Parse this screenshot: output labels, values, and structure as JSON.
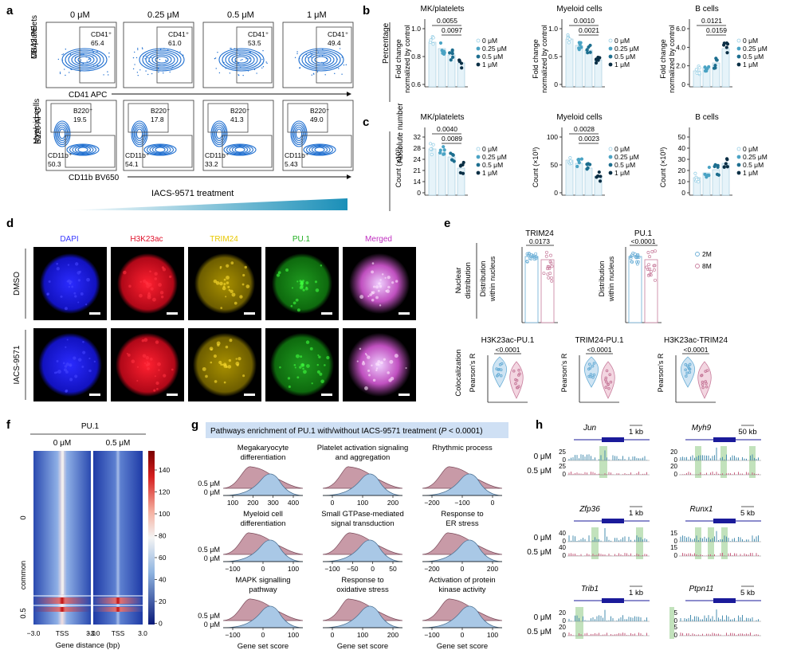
{
  "panels": {
    "a": "a",
    "b": "b",
    "c": "c",
    "d": "d",
    "e": "e",
    "f": "f",
    "g": "g",
    "h": "h"
  },
  "panel_a": {
    "conc": [
      "0 μM",
      "0.25 μM",
      "0.5 μM",
      "1 μM"
    ],
    "row1_label_1": "MK/platelets",
    "row1_label_2": "CD42 PE",
    "row1_xaxis": "CD41 APC",
    "row1_gate": "CD41⁺",
    "row1_values": [
      "65.4",
      "61.0",
      "53.5",
      "49.4"
    ],
    "row2_label_1": "Myeloid cells",
    "row2_label_2": "B220 APC",
    "row2_xaxis": "CD11b BV650",
    "row2_gate_top": "B220⁺",
    "row2_top_values": [
      "19.5",
      "17.8",
      "41.3",
      "49.0"
    ],
    "row2_gate_bottom": "CD11b⁺",
    "row2_bottom_values": [
      "50.3",
      "54.1",
      "33.2",
      "5.43"
    ],
    "treatment": "IACS-9571 treatment"
  },
  "panel_b": {
    "row_label": "Percentage",
    "ylabel_1": "Fold change",
    "ylabel_2": "normalized by control",
    "titles": [
      "MK/platelets",
      "Myeloid cells",
      "B cells"
    ],
    "pvals_top": [
      "0.0055",
      "0.0010",
      "0.0121"
    ],
    "pvals_bottom": [
      "0.0097",
      "0.0021",
      "0.0159"
    ],
    "yticks_1": [
      "1.0",
      "0.8",
      "0.6"
    ],
    "yticks_2": [
      "1.0",
      "0.5",
      "0"
    ],
    "yticks_3": [
      "6.0",
      "4.0",
      "2.0",
      "0"
    ]
  },
  "panel_c": {
    "row_label": "Absolute number",
    "ylabel": "Count (×10³)",
    "titles": [
      "MK/platelets",
      "Myeloid cells",
      "B cells"
    ],
    "pvals_top": [
      "0.0040",
      "0.0028"
    ],
    "pvals_bottom": [
      "0.0089",
      "0.0023"
    ],
    "yticks_1": [
      "32",
      "28",
      "24",
      "21",
      "14",
      "0"
    ],
    "yticks_2": [
      "100",
      "50",
      "0"
    ],
    "yticks_3": [
      "50",
      "40",
      "30",
      "20",
      "10",
      "0"
    ]
  },
  "legend_conc": [
    "0 μM",
    "0.25 μM",
    "0.5 μM",
    "1 μM"
  ],
  "panel_d": {
    "channels": [
      "DAPI",
      "H3K23ac",
      "TRIM24",
      "PU.1",
      "Merged"
    ],
    "channel_colors": [
      "#3a3aff",
      "#e0102a",
      "#e8c800",
      "#22b022",
      "#c030c0"
    ],
    "rows": [
      "DMSO",
      "IACS-9571"
    ]
  },
  "panel_e": {
    "top_titles": [
      "TRIM24",
      "PU.1"
    ],
    "top_pvals": [
      "0.0173",
      "<0.0001"
    ],
    "left_label_1": "Nuclear",
    "left_label_2": "distribution",
    "ylabel_1": "Distribution",
    "ylabel_2": "within nucleus",
    "legend": [
      "2M",
      "8M"
    ],
    "bottom_titles": [
      "H3K23ac-PU.1",
      "TRIM24-PU.1",
      "H3K23ac-TRIM24"
    ],
    "bottom_pvals": [
      "<0.0001",
      "<0.0001",
      "<0.0001"
    ],
    "colocal_label": "Colocalization",
    "pearson": "Pearson's R"
  },
  "panel_f": {
    "title": "PU.1",
    "cols": [
      "0 μM",
      "0.5 μM"
    ],
    "ylabels": [
      "0",
      "common",
      "0.5"
    ],
    "xticks": [
      "−3.0",
      "TSS",
      "3.0"
    ],
    "xlabel": "Gene distance (bp)",
    "colorbar_ticks": [
      "140",
      "120",
      "100",
      "80",
      "60",
      "40",
      "20",
      "0"
    ]
  },
  "panel_g": {
    "title_prefix": "Pathways enrichment of PU.1 with/without IACS-9571 treatment (",
    "title_p": "P",
    "title_suffix": " < 0.0001)",
    "pathways": [
      {
        "l1": "Megakaryocyte",
        "l2": "differentiation",
        "ticks": [
          "100",
          "200",
          "300",
          "400"
        ]
      },
      {
        "l1": "Platelet activation signaling",
        "l2": "and aggregation",
        "ticks": [
          "0",
          "100",
          "200"
        ]
      },
      {
        "l1": "Rhythmic process",
        "l2": "",
        "ticks": [
          "−200",
          "−100",
          "0"
        ]
      },
      {
        "l1": "Myeloid cell",
        "l2": "differentiation",
        "ticks": [
          "−100",
          "0",
          "100"
        ]
      },
      {
        "l1": "Small GTPase-mediated",
        "l2": "signal transduction",
        "ticks": [
          "−100",
          "−50",
          "0",
          "50"
        ]
      },
      {
        "l1": "Response to",
        "l2": "ER stress",
        "ticks": [
          "−200",
          "0",
          "200"
        ]
      },
      {
        "l1": "MAPK signalling",
        "l2": "pathway",
        "ticks": [
          "−100",
          "0",
          "100"
        ]
      },
      {
        "l1": "Response to",
        "l2": "oxidative stress",
        "ticks": [
          "0",
          "100",
          "200"
        ]
      },
      {
        "l1": "Activation of protein",
        "l2": "kinase activity",
        "ticks": [
          "−100",
          "0",
          "100"
        ]
      }
    ],
    "row_labels": [
      "0.5 μM",
      "0 μM"
    ],
    "xlabel": "Gene set score"
  },
  "panel_h": {
    "genes": [
      {
        "name": "Jun",
        "scale": "1 kb",
        "ticks_top": [
          "25",
          "0"
        ],
        "ticks_bot": [
          "25",
          "0"
        ]
      },
      {
        "name": "Myh9",
        "scale": "50 kb",
        "ticks_top": [
          "20",
          "0"
        ],
        "ticks_bot": [
          "20",
          "0"
        ]
      },
      {
        "name": "Zfp36",
        "scale": "1 kb",
        "ticks_top": [
          "40",
          "0"
        ],
        "ticks_bot": [
          "40",
          "0"
        ]
      },
      {
        "name": "Runx1",
        "scale": "5 kb",
        "ticks_top": [
          "15",
          "0"
        ],
        "ticks_bot": [
          "15",
          "0"
        ]
      },
      {
        "name": "Trib1",
        "scale": "1 kb",
        "ticks_top": [
          "20",
          "0"
        ],
        "ticks_bot": [
          "20",
          "0"
        ]
      },
      {
        "name": "Ptpn11",
        "scale": "5 kb",
        "ticks_top": [
          "5",
          "0"
        ],
        "ticks_bot": [
          "5",
          "0"
        ]
      }
    ],
    "row_labels": [
      "0 μM",
      "0.5 μM"
    ]
  },
  "colors": {
    "ctrl": "#9ad0e6",
    "c025": "#4aa3c4",
    "c05": "#1d6e8f",
    "c1": "#0b2f45",
    "m2": "#6aaed6",
    "m8": "#c77b9b",
    "hm_hot": "#c01b1b",
    "hm_cold": "#2040a8",
    "green": "#b7ddb0",
    "red_dist": "#b57a8f",
    "blue_dist": "#8fb8d6"
  }
}
